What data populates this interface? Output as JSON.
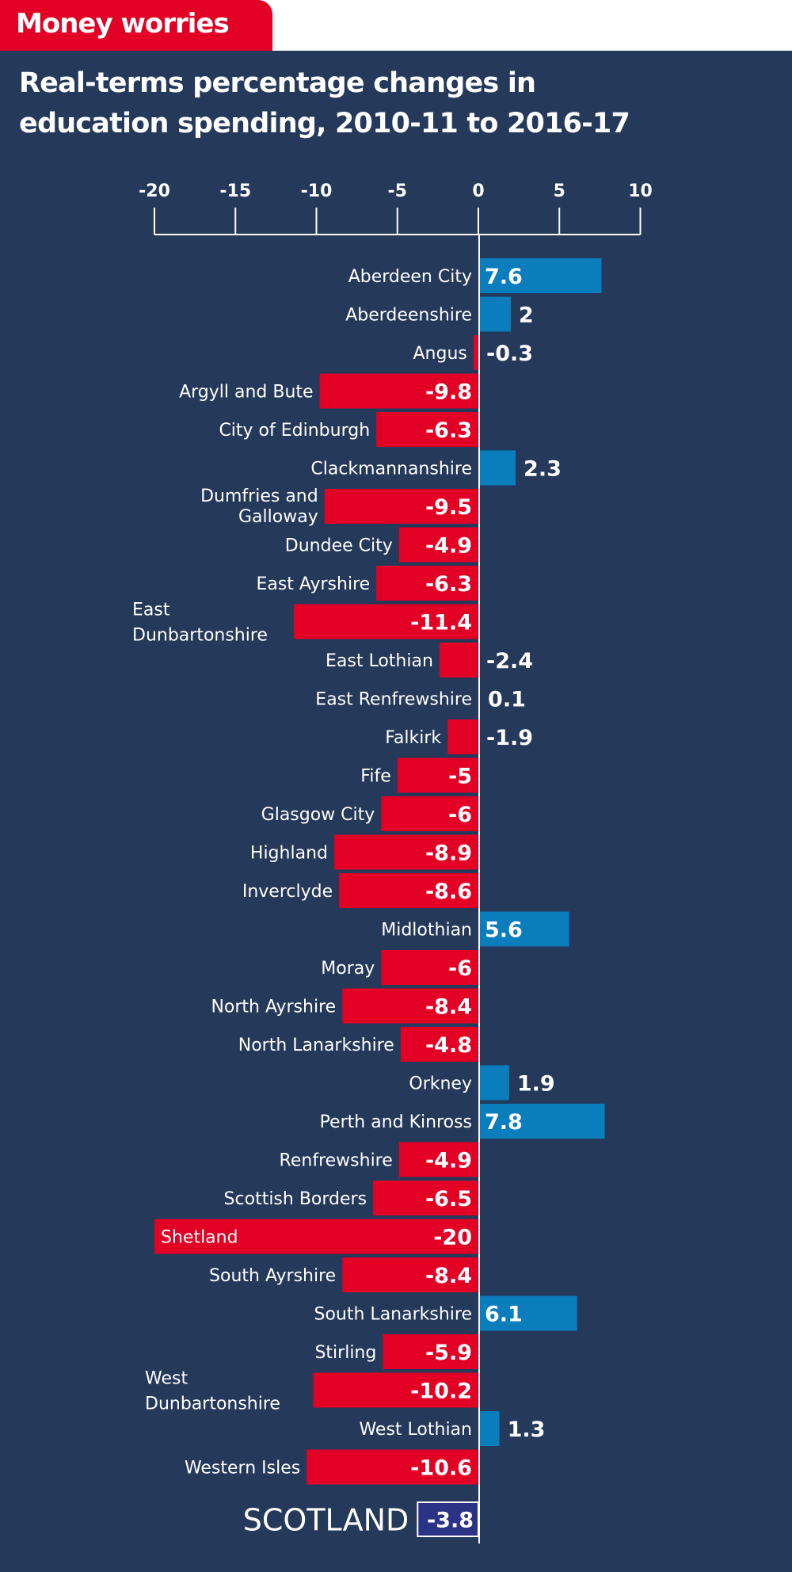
{
  "header": {
    "tab_label": "Money worries",
    "title_line1": "Real-terms percentage changes in",
    "title_line2": "education spending, 2010-11 to 2016-17"
  },
  "colors": {
    "negative": "#e20025",
    "positive": "#0a7dbd",
    "background": "#25395a",
    "summary_box": "#2b3386",
    "axis": "#ffffff"
  },
  "chart_data": {
    "type": "bar",
    "orientation": "horizontal",
    "title": "Real-terms percentage changes in education spending, 2010-11 to 2016-17",
    "xlabel": "",
    "ylabel": "",
    "xlim": [
      -20,
      10
    ],
    "xticks": [
      -20,
      -15,
      -10,
      -5,
      0,
      5,
      10
    ],
    "xtick_labels": [
      "-20",
      "-15",
      "-10",
      "-5",
      "0",
      "5",
      "10"
    ],
    "axis_position": "top",
    "grid": false,
    "categories": [
      "Aberdeen City",
      "Aberdeenshire",
      "Angus",
      "Argyll and Bute",
      "City of Edinburgh",
      "Clackmannanshire",
      "Dumfries and Galloway",
      "Dundee City",
      "East Ayrshire",
      "East Dunbartonshire",
      "East Lothian",
      "East Renfrewshire",
      "Falkirk",
      "Fife",
      "Glasgow City",
      "Highland",
      "Inverclyde",
      "Midlothian",
      "Moray",
      "North Ayrshire",
      "North Lanarkshire",
      "Orkney",
      "Perth and Kinross",
      "Renfrewshire",
      "Scottish Borders",
      "Shetland",
      "South Ayrshire",
      "South Lanarkshire",
      "Stirling",
      "West Dunbartonshire",
      "West Lothian",
      "Western Isles"
    ],
    "values": [
      7.6,
      2,
      -0.3,
      -9.8,
      -6.3,
      2.3,
      -9.5,
      -4.9,
      -6.3,
      -11.4,
      -2.4,
      0.1,
      -1.9,
      -5,
      -6,
      -8.9,
      -8.6,
      5.6,
      -6,
      -8.4,
      -4.8,
      1.9,
      7.8,
      -4.9,
      -6.5,
      -20,
      -8.4,
      6.1,
      -5.9,
      -10.2,
      1.3,
      -10.6
    ],
    "value_labels": [
      "7.6",
      "2",
      "-0.3",
      "-9.8",
      "-6.3",
      "2.3",
      "-9.5",
      "-4.9",
      "-6.3",
      "-11.4",
      "-2.4",
      "0.1",
      "-1.9",
      "-5",
      "-6",
      "-8.9",
      "-8.6",
      "5.6",
      "-6",
      "-8.4",
      "-4.8",
      "1.9",
      "7.8",
      "-4.9",
      "-6.5",
      "-20",
      "-8.4",
      "6.1",
      "-5.9",
      "-10.2",
      "1.3",
      "-10.6"
    ],
    "label_lines": {
      "Dumfries and Galloway": [
        "Dumfries and",
        "Galloway"
      ],
      "East Dunbartonshire": [
        "East",
        "Dunbartonshire"
      ],
      "West Dunbartonshire": [
        "West",
        "Dunbartonshire"
      ]
    },
    "summary": {
      "label": "SCOTLAND",
      "value": -3.8,
      "value_label": "-3.8"
    }
  }
}
